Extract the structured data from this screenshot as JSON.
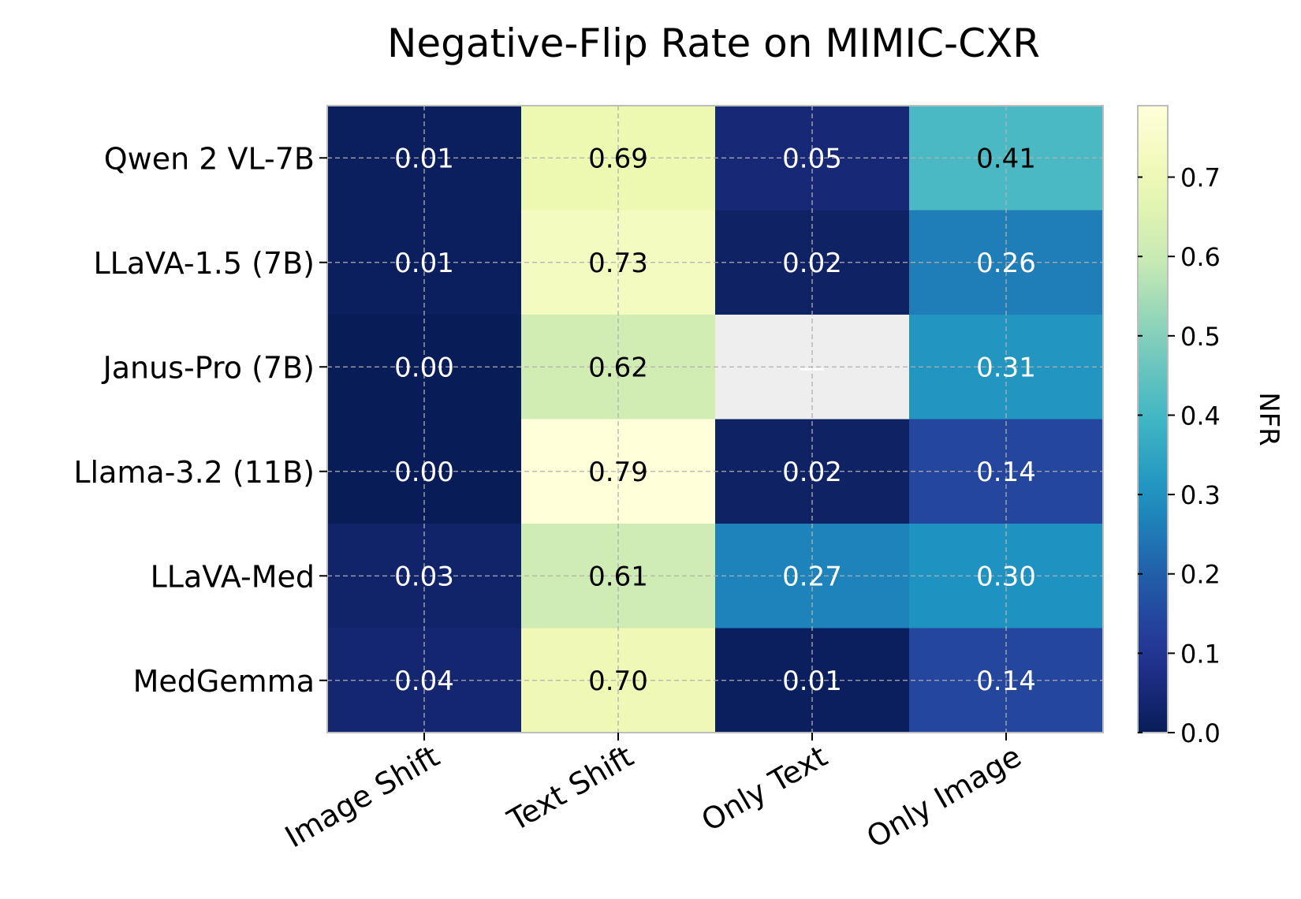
{
  "chart_data": {
    "type": "heatmap",
    "title": "Negative-Flip Rate on MIMIC-CXR",
    "rows": [
      "Qwen 2 VL-7B",
      "LLaVA-1.5 (7B)",
      "Janus-Pro (7B)",
      "Llama-3.2 (11B)",
      "LLaVA-Med",
      "MedGemma"
    ],
    "columns": [
      "Image Shift",
      "Text Shift",
      "Only Text",
      "Only Image"
    ],
    "values": [
      [
        0.01,
        0.69,
        0.05,
        0.41
      ],
      [
        0.01,
        0.73,
        0.02,
        0.26
      ],
      [
        0.0,
        0.62,
        null,
        0.31
      ],
      [
        0.0,
        0.79,
        0.02,
        0.14
      ],
      [
        0.03,
        0.61,
        0.27,
        0.3
      ],
      [
        0.04,
        0.7,
        0.01,
        0.14
      ]
    ],
    "labels": [
      [
        "0.01",
        "0.69",
        "0.05",
        "0.41"
      ],
      [
        "0.01",
        "0.73",
        "0.02",
        "0.26"
      ],
      [
        "0.00",
        "0.62",
        "—",
        "0.31"
      ],
      [
        "0.00",
        "0.79",
        "0.02",
        "0.14"
      ],
      [
        "0.03",
        "0.61",
        "0.27",
        "0.30"
      ],
      [
        "0.04",
        "0.70",
        "0.01",
        "0.14"
      ]
    ],
    "colormap": "YlGnBu_r",
    "vmin": 0.0,
    "vmax": 0.79,
    "missing_color": "#eeeeee",
    "colorbar": {
      "label": "NFR",
      "ticks": [
        0.0,
        0.1,
        0.2,
        0.3,
        0.4,
        0.5,
        0.6,
        0.7
      ],
      "tick_labels": [
        "0.0",
        "0.1",
        "0.2",
        "0.3",
        "0.4",
        "0.5",
        "0.6",
        "0.7"
      ]
    },
    "grid": true
  }
}
